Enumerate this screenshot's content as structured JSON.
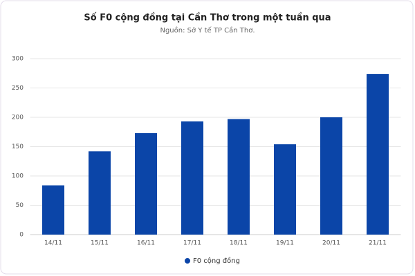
{
  "chart_data": {
    "type": "bar",
    "title": "Số F0 cộng đồng tại Cần Thơ trong một tuần qua",
    "subtitle": "Nguồn: Sở Y tế TP Cần Thơ.",
    "categories": [
      "14/11",
      "15/11",
      "16/11",
      "17/11",
      "18/11",
      "19/11",
      "20/11",
      "21/11"
    ],
    "series": [
      {
        "name": "F0 cộng đồng",
        "color": "#0b45a8",
        "values": [
          84,
          142,
          173,
          193,
          197,
          154,
          200,
          274
        ]
      }
    ],
    "ylim": [
      0,
      300
    ],
    "yticks": [
      0,
      50,
      100,
      150,
      200,
      250,
      300
    ],
    "grid": true,
    "legend": "bottom"
  }
}
